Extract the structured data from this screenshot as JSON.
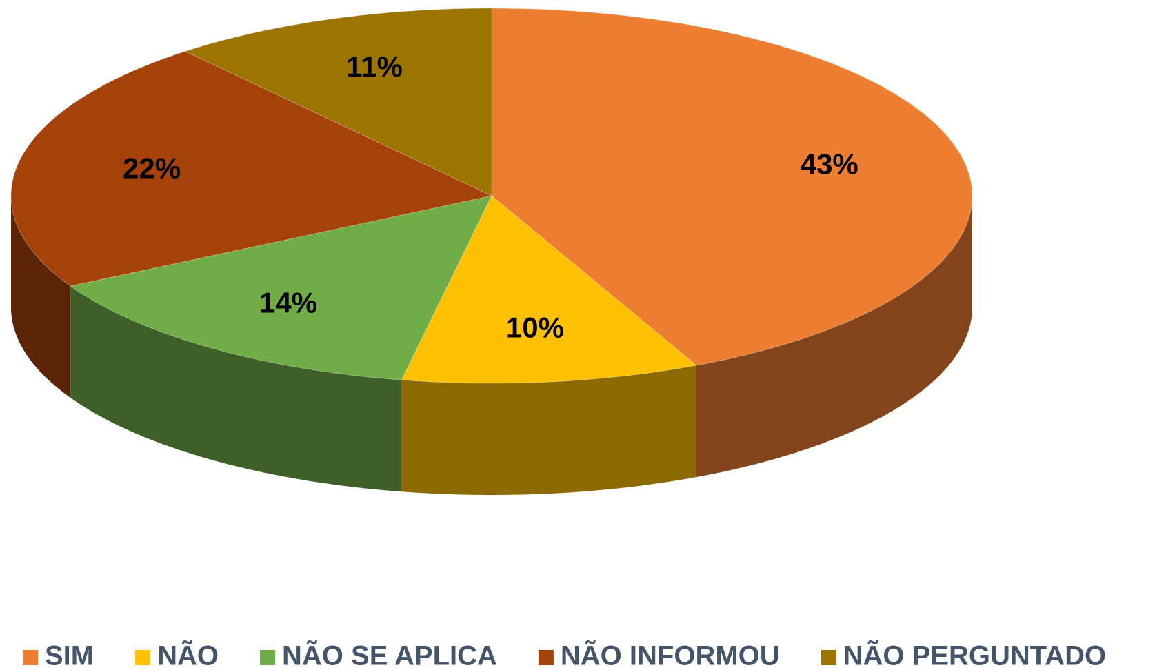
{
  "chart_data": {
    "type": "pie",
    "categories": [
      "SIM",
      "NÃO",
      "NÃO SE APLICA",
      "NÃO INFORMOU",
      "NÃO PERGUNTADO"
    ],
    "values": [
      43,
      10,
      14,
      22,
      11
    ],
    "value_labels": [
      "43%",
      "10%",
      "14%",
      "22%",
      "11%"
    ],
    "colors": [
      "#ed7d31",
      "#ffc000",
      "#70ad47",
      "#a5420a",
      "#9c7400"
    ],
    "legend": "bottom"
  }
}
